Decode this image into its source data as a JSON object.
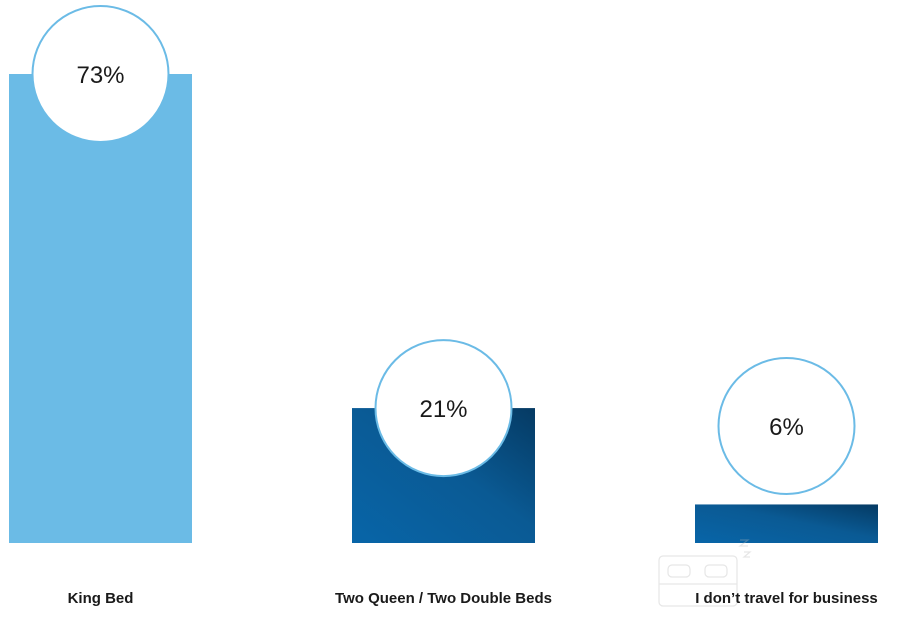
{
  "chart_data": {
    "type": "bar",
    "categories": [
      "King Bed",
      "Two Queen / Two Double Beds",
      "I don’t travel for business"
    ],
    "values": [
      73,
      21,
      6
    ],
    "value_labels": [
      "73%",
      "21%",
      "6%"
    ],
    "unit": "%",
    "title": "",
    "xlabel": "",
    "ylabel": "",
    "ylim": [
      0,
      73
    ],
    "grid": false,
    "colors": [
      "#6bbbe6",
      "#0a5d98",
      "#0a5d98"
    ],
    "circle_stroke": "#6bbbe6"
  }
}
